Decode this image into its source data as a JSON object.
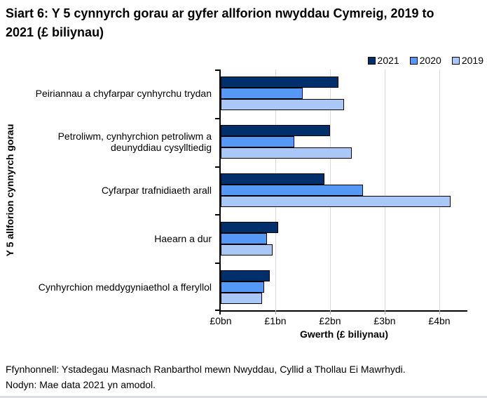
{
  "title": "Siart 6: Y 5 cynnyrch gorau ar gyfer allforion nwyddau Cymreig, 2019 to 2021 (£ biliynau)",
  "chart_data": {
    "type": "bar",
    "orientation": "horizontal",
    "title": "Siart 6: Y 5 cynnyrch gorau ar gyfer allforion nwyddau Cymreig, 2019 to 2021 (£ biliynau)",
    "categories": [
      "Peiriannau a chyfarpar cynhyrchu trydan",
      "Petroliwm, cynhyrchion petroliwm a deunyddiau cysylltiedig",
      "Cyfarpar trafnidiaeth arall",
      "Haearn a dur",
      "Cynhyrchion meddygyniaethol a fferyllol"
    ],
    "series": [
      {
        "name": "2021",
        "color": "#002F6C",
        "values": [
          2.15,
          2.0,
          1.9,
          1.05,
          0.9
        ]
      },
      {
        "name": "2020",
        "color": "#5598F5",
        "values": [
          1.5,
          1.35,
          2.6,
          0.85,
          0.8
        ]
      },
      {
        "name": "2019",
        "color": "#A9C8F7",
        "values": [
          2.25,
          2.4,
          4.2,
          0.95,
          0.75
        ]
      }
    ],
    "xlabel": "Gwerth (£ biliynau)",
    "ylabel": "Y 5 allforion cynnyrch gorau",
    "x_ticks": [
      "£0bn",
      "£1bn",
      "£2bn",
      "£3bn",
      "£4bn"
    ],
    "xlim": [
      0,
      4.5
    ],
    "grid": true,
    "legend_position": "top-right"
  },
  "footer": {
    "source": "Ffynhonnell: Ystadegau Masnach Ranbarthol mewn Nwyddau, Cyllid a Thollau Ei Mawrhydi.",
    "note": "Nodyn: Mae data 2021 yn amodol."
  }
}
